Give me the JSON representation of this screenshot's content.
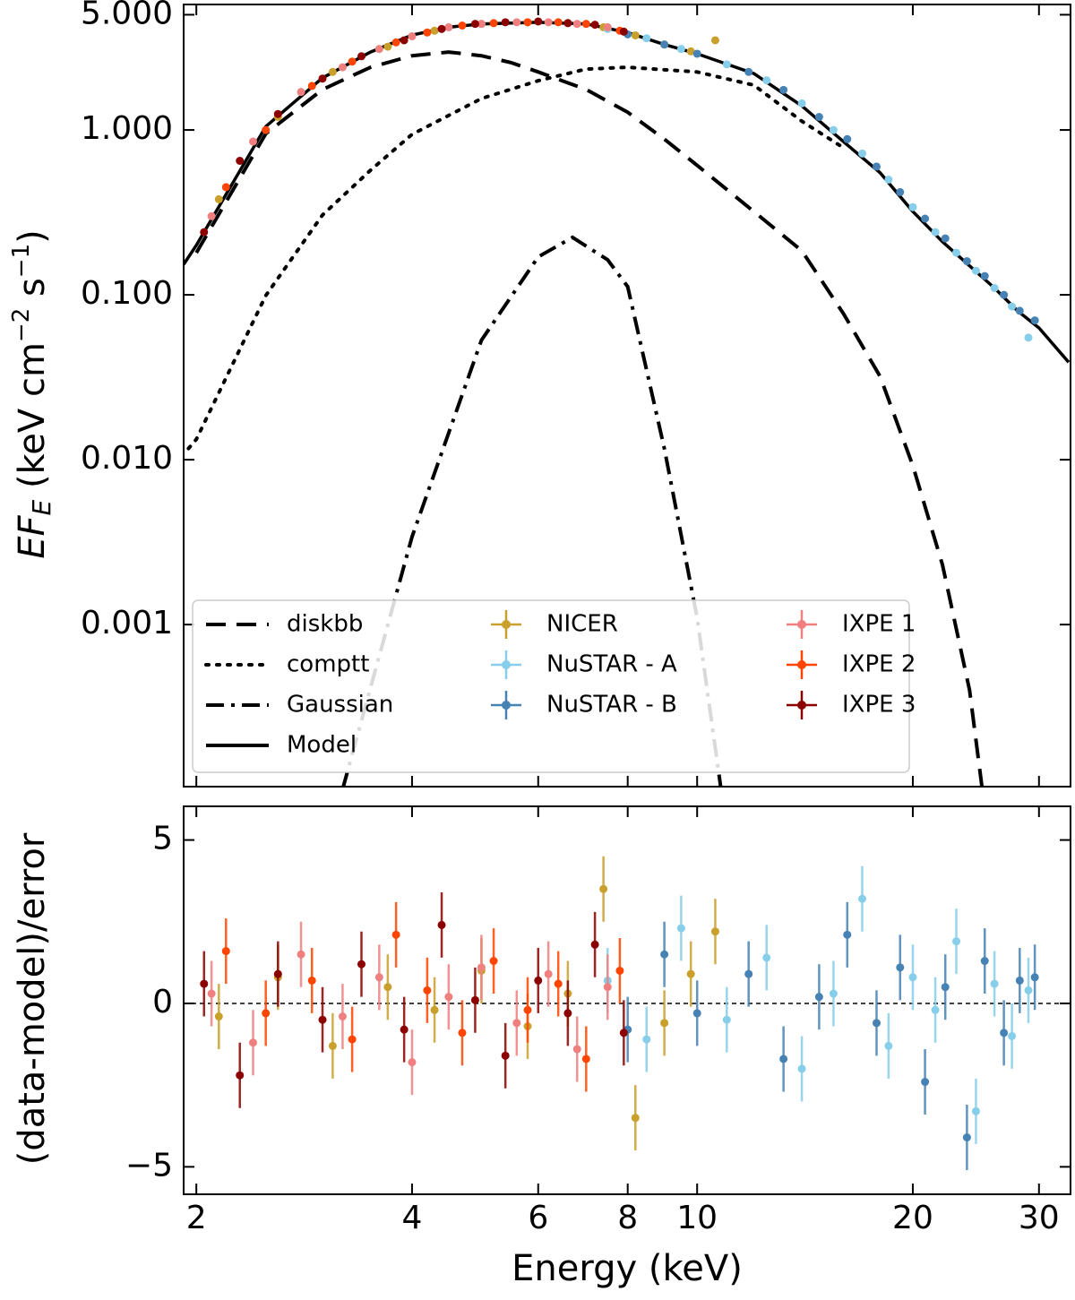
{
  "chart_data": [
    {
      "type": "line",
      "ylabel": [
        "EF",
        "E",
        " (keV cm",
        "−2",
        " s",
        "−1",
        ")"
      ],
      "xscale": "log",
      "yscale": "log",
      "xlim": [
        1.92,
        33.2
      ],
      "ylim": [
        0.000104,
        5.77
      ],
      "yticks": [
        {
          "value": 0.001,
          "label": "0.001"
        },
        {
          "value": 0.01,
          "label": "0.010"
        },
        {
          "value": 0.1,
          "label": "0.100"
        },
        {
          "value": 1,
          "label": "1.000"
        },
        {
          "value": 5,
          "label": "5.000"
        }
      ],
      "legend": "lower left",
      "curves": [
        {
          "name": "diskbb",
          "style": "dashed",
          "x": [
            2,
            2.5,
            3,
            3.5,
            4,
            4.5,
            5,
            5.5,
            6,
            7,
            8,
            9,
            10,
            12,
            14,
            16,
            18,
            20,
            22,
            24,
            25
          ],
          "values": [
            0.18,
            0.95,
            1.76,
            2.4,
            2.82,
            2.97,
            2.82,
            2.56,
            2.25,
            1.76,
            1.28,
            0.88,
            0.61,
            0.32,
            0.185,
            0.077,
            0.032,
            0.0092,
            0.0023,
            0.0004,
            0.0001
          ]
        },
        {
          "name": "comptt",
          "style": "dotted",
          "x": [
            1.95,
            2,
            2.5,
            3,
            3.5,
            4,
            5,
            6,
            7,
            8,
            10,
            12,
            14,
            16
          ],
          "values": [
            0.0117,
            0.0133,
            0.099,
            0.305,
            0.57,
            0.94,
            1.55,
            1.99,
            2.34,
            2.4,
            2.25,
            1.87,
            1.13,
            0.78
          ]
        },
        {
          "name": "Gaussian",
          "style": "dashdot",
          "x": [
            3.2,
            4,
            5,
            6,
            6.7,
            7.5,
            8,
            9,
            10,
            10.8
          ],
          "values": [
            0.0001,
            0.0034,
            0.053,
            0.17,
            0.223,
            0.163,
            0.112,
            0.0117,
            0.0011,
            0.0001
          ]
        },
        {
          "name": "Model",
          "style": "solid",
          "x": [
            1.92,
            2,
            2.5,
            3,
            3.5,
            4,
            4.5,
            5,
            6,
            7,
            8,
            9,
            10,
            12,
            14,
            16,
            18,
            20,
            22,
            24,
            26,
            28,
            30,
            33
          ],
          "values": [
            0.153,
            0.2,
            1.05,
            2.07,
            2.97,
            3.76,
            4.2,
            4.4,
            4.5,
            4.4,
            3.9,
            3.3,
            2.9,
            2.2,
            1.4,
            0.85,
            0.55,
            0.32,
            0.21,
            0.15,
            0.11,
            0.08,
            0.063,
            0.039
          ]
        }
      ],
      "series": [
        {
          "name": "NICER",
          "color": "#c9a02c",
          "x": [
            2.15,
            2.6,
            3.1,
            3.7,
            4.3,
            5.0,
            5.8,
            6.6,
            7.4,
            8.2,
            9.0,
            9.8,
            10.6
          ],
          "values": [
            0.38,
            1.2,
            2.25,
            3.2,
            4.0,
            4.4,
            4.5,
            4.45,
            4.2,
            3.75,
            3.3,
            3.0,
            3.5
          ]
        },
        {
          "name": "NuSTAR - A",
          "color": "#87ceeb",
          "x": [
            7.5,
            8.5,
            9.5,
            11,
            12.5,
            14,
            15.5,
            17,
            18.5,
            20,
            21.5,
            23,
            24.5,
            26,
            27.5,
            29
          ],
          "values": [
            4.1,
            3.6,
            3.1,
            2.5,
            2.0,
            1.45,
            1.0,
            0.72,
            0.5,
            0.34,
            0.24,
            0.18,
            0.14,
            0.11,
            0.085,
            0.055
          ]
        },
        {
          "name": "NuSTAR - B",
          "color": "#4682b4",
          "x": [
            8,
            9,
            10,
            11.8,
            13.2,
            14.8,
            16.2,
            17.8,
            19.2,
            20.8,
            22.2,
            23.8,
            25.2,
            26.8,
            28.2,
            29.6
          ],
          "values": [
            3.8,
            3.3,
            2.9,
            2.25,
            1.75,
            1.2,
            0.88,
            0.6,
            0.42,
            0.29,
            0.22,
            0.16,
            0.13,
            0.1,
            0.08,
            0.07
          ]
        },
        {
          "name": "IXPE 1",
          "color": "#f08080",
          "x": [
            2.1,
            2.4,
            2.8,
            3.2,
            3.6,
            4.0,
            4.5,
            5.0,
            5.6,
            6.2,
            6.8,
            7.5
          ],
          "values": [
            0.3,
            0.85,
            1.7,
            2.4,
            3.1,
            3.7,
            4.2,
            4.4,
            4.5,
            4.5,
            4.4,
            4.2
          ]
        },
        {
          "name": "IXPE 2",
          "color": "#ff4500",
          "x": [
            2.2,
            2.5,
            2.9,
            3.3,
            3.8,
            4.2,
            4.7,
            5.2,
            5.8,
            6.4,
            7.0,
            7.8
          ],
          "values": [
            0.45,
            1.0,
            1.85,
            2.6,
            3.4,
            3.9,
            4.3,
            4.45,
            4.5,
            4.5,
            4.4,
            4.0
          ]
        },
        {
          "name": "IXPE 3",
          "color": "#8b0000",
          "x": [
            2.05,
            2.3,
            2.6,
            3.0,
            3.4,
            3.9,
            4.4,
            4.9,
            5.4,
            6.0,
            6.6,
            7.2,
            7.9
          ],
          "values": [
            0.24,
            0.65,
            1.25,
            2.05,
            2.8,
            3.5,
            4.1,
            4.4,
            4.5,
            4.55,
            4.45,
            4.35,
            3.95
          ]
        }
      ]
    },
    {
      "type": "scatter",
      "xlabel": "Energy (keV)",
      "ylabel": "(data-model)/error",
      "xscale": "log",
      "xlim": [
        1.92,
        33.2
      ],
      "ylim": [
        -5.84,
        6.03
      ],
      "xticks": [
        2,
        4,
        6,
        8,
        10,
        20,
        30
      ],
      "yticks": [
        {
          "value": -5,
          "label": "−5"
        },
        0,
        5
      ],
      "hline": 0,
      "series": [
        {
          "color": "#87ceeb",
          "yerr": 1,
          "x": [
            7.5,
            8.5,
            9.5,
            11,
            12.5,
            14,
            15.5,
            17,
            18.5,
            20,
            21.5,
            23,
            24.5,
            26,
            27.5,
            29
          ],
          "values": [
            0.7,
            -1.1,
            2.3,
            -0.5,
            1.4,
            -2.0,
            0.3,
            3.2,
            -1.3,
            0.8,
            -0.2,
            1.9,
            -3.3,
            0.6,
            -1.0,
            0.4
          ]
        },
        {
          "color": "#4682b4",
          "yerr": 1,
          "x": [
            8,
            9,
            10,
            11.8,
            13.2,
            14.8,
            16.2,
            17.8,
            19.2,
            20.8,
            22.2,
            23.8,
            25.2,
            26.8,
            28.2,
            29.6
          ],
          "values": [
            -0.8,
            1.5,
            -0.3,
            0.9,
            -1.7,
            0.2,
            2.1,
            -0.6,
            1.1,
            -2.4,
            0.5,
            -4.1,
            1.3,
            -0.9,
            0.7,
            0.8
          ]
        },
        {
          "color": "#c9a02c",
          "yerr": 1,
          "x": [
            2.15,
            2.6,
            3.1,
            3.7,
            4.3,
            5.0,
            5.8,
            6.6,
            7.4,
            8.2,
            9.0,
            9.8,
            10.6
          ],
          "values": [
            -0.4,
            0.8,
            -1.3,
            0.5,
            -0.2,
            1.0,
            -0.7,
            0.3,
            3.5,
            -3.5,
            -0.6,
            0.9,
            2.2
          ]
        },
        {
          "color": "#f08080",
          "yerr": 1,
          "x": [
            2.1,
            2.4,
            2.8,
            3.2,
            3.6,
            4.0,
            4.5,
            5.0,
            5.6,
            6.2,
            6.8,
            7.5
          ],
          "values": [
            0.3,
            -1.2,
            1.5,
            -0.4,
            0.8,
            -1.8,
            0.2,
            1.1,
            -0.6,
            0.9,
            -1.4,
            0.5
          ]
        },
        {
          "color": "#ff4500",
          "yerr": 1,
          "x": [
            2.2,
            2.5,
            2.9,
            3.3,
            3.8,
            4.2,
            4.7,
            5.2,
            5.8,
            6.4,
            7.0,
            7.8
          ],
          "values": [
            1.6,
            -0.3,
            0.7,
            -1.1,
            2.1,
            0.4,
            -0.9,
            1.3,
            -0.2,
            0.6,
            -1.7,
            1.0
          ]
        },
        {
          "color": "#8b0000",
          "yerr": 1,
          "x": [
            2.05,
            2.3,
            2.6,
            3.0,
            3.4,
            3.9,
            4.4,
            4.9,
            5.4,
            6.0,
            6.6,
            7.2,
            7.9
          ],
          "values": [
            0.6,
            -2.2,
            0.9,
            -0.5,
            1.2,
            -0.8,
            2.4,
            0.1,
            -1.6,
            0.7,
            -0.3,
            1.8,
            -0.9
          ]
        }
      ]
    }
  ]
}
